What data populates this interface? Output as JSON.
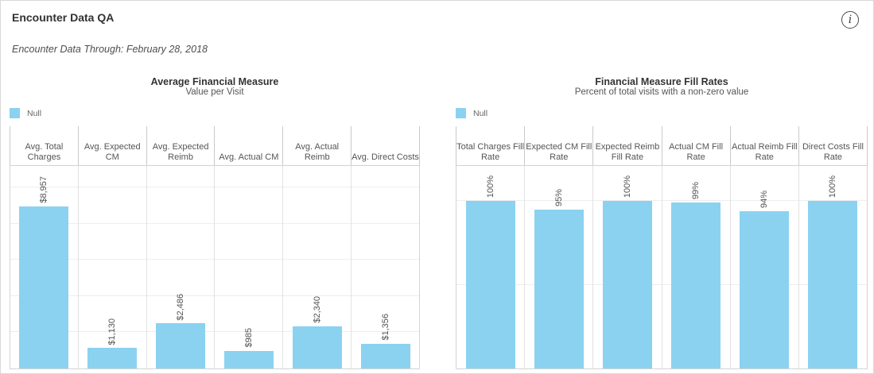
{
  "page": {
    "title": "Encounter Data QA",
    "date_note": "Encounter Data Through: February 28, 2018"
  },
  "icons": {
    "info": "i"
  },
  "colors": {
    "bar_fill": "#8bd2f0",
    "header_text": "#555555",
    "label_text": "#535353"
  },
  "chart_data": [
    {
      "type": "bar",
      "title": "Average Financial Measure",
      "subtitle": "Value per Visit",
      "legend": {
        "label": "Null",
        "color": "#8bd2f0",
        "position": "top-left"
      },
      "categories": [
        "Avg. Total Charges",
        "Avg. Expected CM",
        "Avg. Expected Reimb",
        "Avg. Actual CM",
        "Avg. Actual Reimb",
        "Avg. Direct Costs"
      ],
      "values": [
        8957,
        1130,
        2486,
        985,
        2340,
        1356
      ],
      "labels": [
        "$8,957",
        "$1,130",
        "$2,486",
        "$985",
        "$2,340",
        "$1,356"
      ],
      "ylabel": "",
      "ylim": [
        0,
        11200
      ],
      "gridlines": [
        2000,
        4000,
        6000,
        8000,
        10000
      ],
      "grid": true
    },
    {
      "type": "bar",
      "title": "Financial Measure Fill Rates",
      "subtitle": "Percent of total visits with a non-zero value",
      "legend": {
        "label": "Null",
        "color": "#8bd2f0",
        "position": "top-left"
      },
      "categories": [
        "Total Charges Fill Rate",
        "Expected CM Fill Rate",
        "Expected Reimb Fill Rate",
        "Actual CM Fill Rate",
        "Actual Reimb Fill Rate",
        "Direct Costs Fill Rate"
      ],
      "values": [
        100,
        95,
        100,
        99,
        94,
        100
      ],
      "labels": [
        "100%",
        "95%",
        "100%",
        "99%",
        "94%",
        "100%"
      ],
      "ylabel": "",
      "ylim": [
        0,
        121
      ],
      "gridlines": [
        50,
        100
      ],
      "grid": true
    }
  ]
}
